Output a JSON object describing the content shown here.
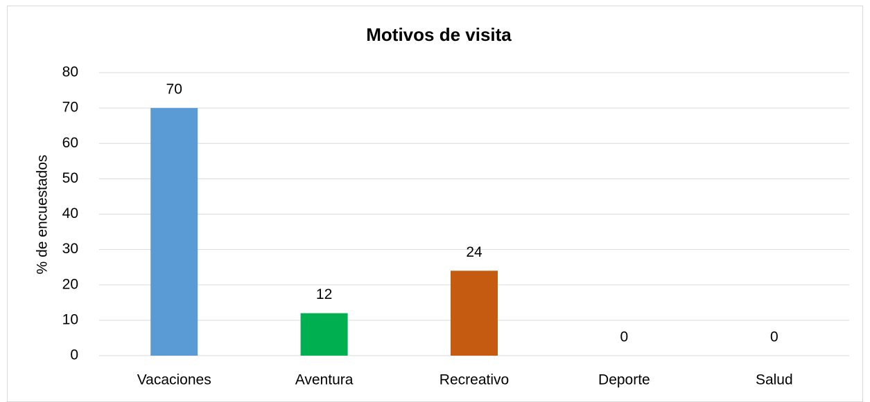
{
  "chart_data": {
    "type": "bar",
    "title": "Motivos de visita",
    "y_label": "% de encuestados",
    "categories": [
      "Vacaciones",
      "Aventura",
      "Recreativo",
      "Deporte",
      "Salud"
    ],
    "values": [
      70,
      12,
      24,
      0,
      0
    ],
    "colors": [
      "#5b9bd5",
      "#00b050",
      "#c55a11"
    ],
    "ylim": [
      0,
      80
    ],
    "yticks": [
      0,
      10,
      20,
      30,
      40,
      50,
      60,
      70,
      80
    ],
    "grid": true
  }
}
